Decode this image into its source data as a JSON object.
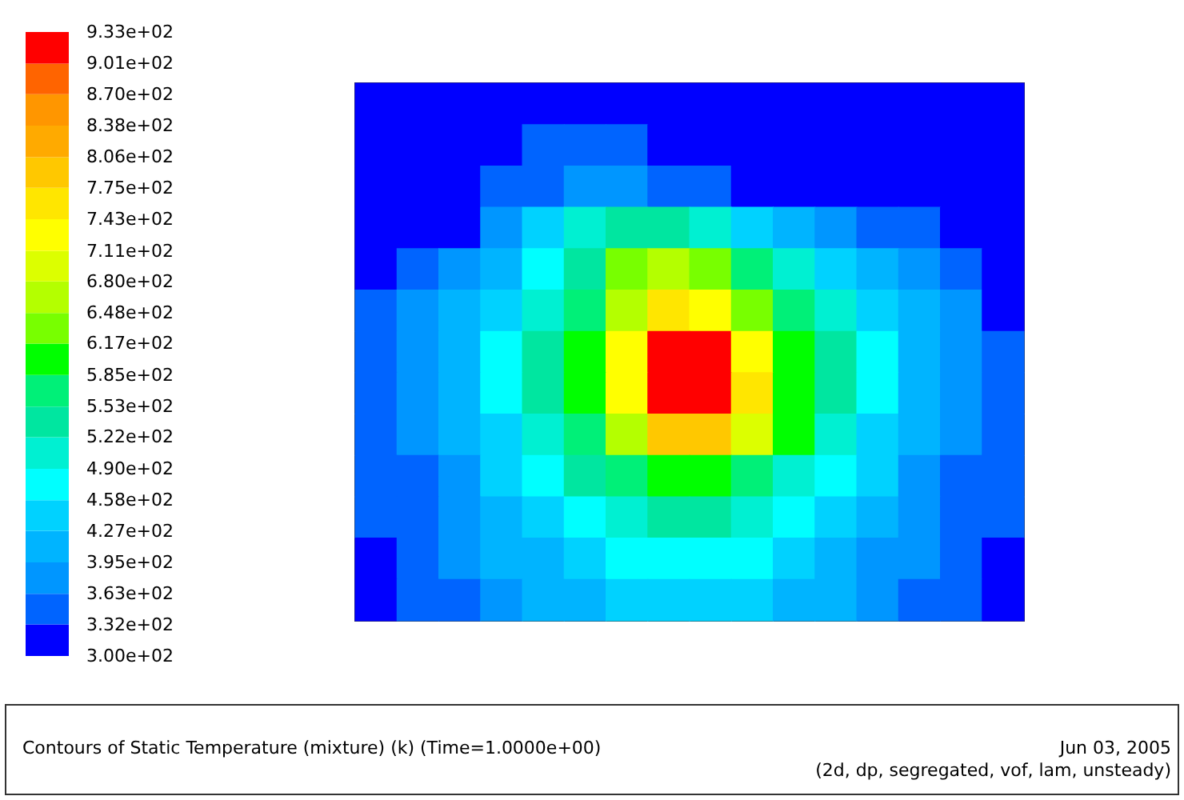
{
  "chart_data": {
    "type": "heatmap",
    "title": "Contours of Static Temperature (mixture)  (k)  (Time=1.0000e+00)",
    "annotations": [
      "Jun 03, 2005",
      "(2d, dp, segregated, vof, lam, unsteady)"
    ],
    "categories": [
      null,
      null,
      null,
      null,
      null,
      null,
      null,
      null,
      null,
      null,
      null,
      null,
      null,
      null,
      null,
      null
    ],
    "y_categories": [
      null,
      null,
      null,
      null,
      null,
      null,
      null,
      null,
      null,
      null,
      null,
      null,
      null
    ],
    "clim": [
      300,
      933
    ],
    "cticks": [
      {
        "value": 300,
        "label": "3.00e+02"
      },
      {
        "value": 332,
        "label": "3.32e+02"
      },
      {
        "value": 363,
        "label": "3.63e+02"
      },
      {
        "value": 395,
        "label": "3.95e+02"
      },
      {
        "value": 427,
        "label": "4.27e+02"
      },
      {
        "value": 458,
        "label": "4.58e+02"
      },
      {
        "value": 490,
        "label": "4.90e+02"
      },
      {
        "value": 522,
        "label": "5.22e+02"
      },
      {
        "value": 553,
        "label": "5.53e+02"
      },
      {
        "value": 585,
        "label": "5.85e+02"
      },
      {
        "value": 617,
        "label": "6.17e+02"
      },
      {
        "value": 648,
        "label": "6.48e+02"
      },
      {
        "value": 680,
        "label": "6.80e+02"
      },
      {
        "value": 711,
        "label": "7.11e+02"
      },
      {
        "value": 743,
        "label": "7.43e+02"
      },
      {
        "value": 775,
        "label": "7.75e+02"
      },
      {
        "value": 806,
        "label": "8.06e+02"
      },
      {
        "value": 838,
        "label": "8.38e+02"
      },
      {
        "value": 870,
        "label": "8.70e+02"
      },
      {
        "value": 901,
        "label": "9.01e+02"
      },
      {
        "value": 933,
        "label": "9.33e+02"
      }
    ],
    "cells": [
      [
        316,
        316,
        316,
        316,
        316,
        316,
        316,
        316,
        316,
        316,
        316,
        316,
        316,
        316,
        316,
        316
      ],
      [
        316,
        316,
        316,
        316,
        347,
        347,
        347,
        316,
        316,
        316,
        316,
        316,
        316,
        316,
        316,
        316
      ],
      [
        316,
        316,
        316,
        347,
        347,
        379,
        379,
        347,
        347,
        316,
        316,
        316,
        316,
        316,
        316,
        316
      ],
      [
        316,
        316,
        316,
        379,
        442,
        506,
        537,
        537,
        506,
        442,
        411,
        379,
        347,
        347,
        316,
        316
      ],
      [
        316,
        347,
        379,
        411,
        474,
        537,
        632,
        664,
        632,
        569,
        506,
        442,
        411,
        379,
        347,
        316
      ],
      [
        347,
        379,
        411,
        442,
        506,
        569,
        664,
        759,
        727,
        632,
        569,
        506,
        442,
        411,
        379,
        316
      ],
      [
        347,
        379,
        411,
        474,
        537,
        601,
        727,
        917,
        917,
        727,
        601,
        537,
        474,
        411,
        379,
        347
      ],
      [
        347,
        379,
        411,
        474,
        537,
        601,
        727,
        917,
        917,
        759,
        601,
        537,
        474,
        411,
        379,
        347
      ],
      [
        347,
        379,
        411,
        442,
        506,
        569,
        664,
        790,
        790,
        695,
        601,
        506,
        442,
        411,
        379,
        347
      ],
      [
        347,
        347,
        379,
        442,
        474,
        537,
        569,
        601,
        601,
        569,
        506,
        474,
        442,
        379,
        347,
        347
      ],
      [
        347,
        347,
        379,
        411,
        442,
        474,
        506,
        537,
        537,
        506,
        474,
        442,
        411,
        379,
        347,
        347
      ],
      [
        316,
        347,
        379,
        411,
        411,
        442,
        474,
        474,
        474,
        474,
        442,
        411,
        379,
        379,
        347,
        316
      ],
      [
        316,
        347,
        347,
        379,
        411,
        411,
        442,
        442,
        442,
        442,
        411,
        411,
        379,
        347,
        347,
        316
      ]
    ]
  }
}
